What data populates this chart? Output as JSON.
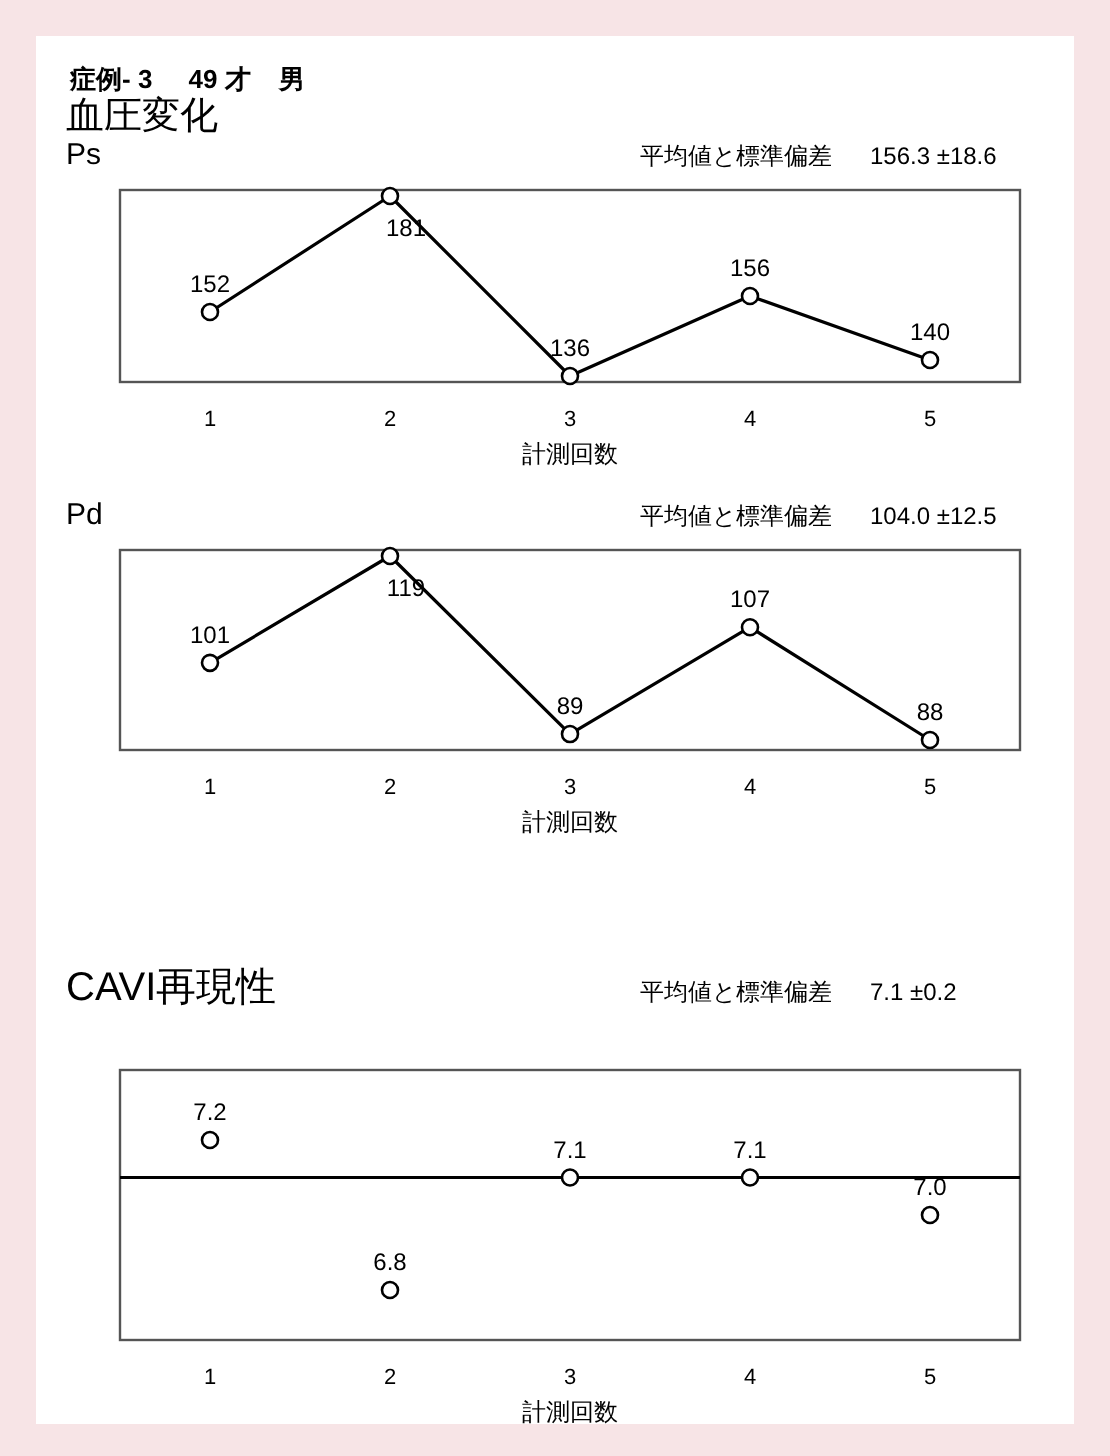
{
  "chart_data": [
    {
      "type": "other",
      "title": "症例- 3     49 才    男",
      "subtitle": "血圧変化"
    },
    {
      "type": "line",
      "title": "Ps",
      "annotations": [
        "平均値と標準偏差",
        "156.3 ±18.6"
      ],
      "xlabel": "計測回数",
      "categories": [
        "1",
        "2",
        "3",
        "4",
        "5"
      ],
      "marker": "circle",
      "line_style": "solid",
      "data_labels": true,
      "series": [
        {
          "color": "#000000",
          "values": [
            152,
            181,
            136,
            156,
            140
          ]
        }
      ]
    },
    {
      "type": "line",
      "title": "Pd",
      "annotations": [
        "平均値と標準偏差",
        "104.0 ±12.5"
      ],
      "xlabel": "計測回数",
      "categories": [
        "1",
        "2",
        "3",
        "4",
        "5"
      ],
      "marker": "circle",
      "line_style": "solid",
      "data_labels": true,
      "series": [
        {
          "color": "#000000",
          "values": [
            101,
            119,
            89,
            107,
            88
          ]
        }
      ]
    },
    {
      "type": "scatter",
      "title": "CAVI再現性",
      "annotations": [
        "平均値と標準偏差",
        "7.1 ±0.2"
      ],
      "xlabel": "計測回数",
      "categories": [
        "1",
        "2",
        "3",
        "4",
        "5"
      ],
      "marker": "circle",
      "data_labels": true,
      "series": [
        {
          "color": "#000000",
          "values": [
            7.2,
            6.8,
            7.1,
            7.1,
            7.0
          ],
          "value_labels": [
            "7.2",
            "6.8",
            "7.1",
            "7.1",
            "7.0"
          ]
        }
      ],
      "ref_lines": [
        {
          "axis": "y",
          "value": 7.1,
          "color": "#000000",
          "line_style": "solid"
        }
      ]
    }
  ]
}
